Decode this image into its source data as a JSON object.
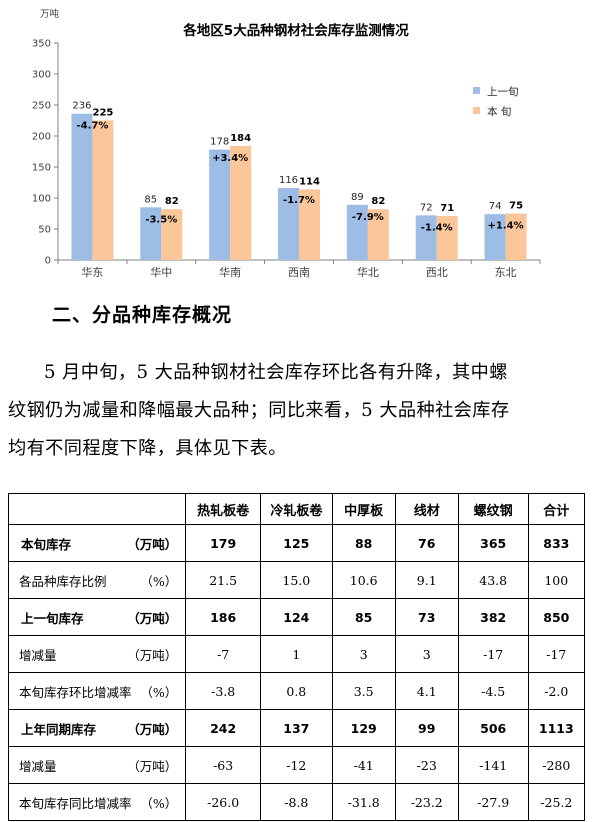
{
  "chart_data": {
    "type": "bar",
    "title": "各地区5大品种钢材社会库存监测情况",
    "unit_label": "万吨",
    "ylim": [
      0,
      350
    ],
    "yticks": [
      0,
      50,
      100,
      150,
      200,
      250,
      300,
      350
    ],
    "categories": [
      "华东",
      "华中",
      "华南",
      "西南",
      "华北",
      "西北",
      "东北"
    ],
    "series": [
      {
        "name": "上一旬",
        "values": [
          236,
          85,
          178,
          116,
          89,
          72,
          74
        ],
        "color": "#9dbde6"
      },
      {
        "name": "本 旬",
        "values": [
          225,
          82,
          184,
          114,
          82,
          71,
          75
        ],
        "color": "#fbc79a"
      }
    ],
    "changes": [
      "-4.7%",
      "-3.5%",
      "+3.4%",
      "-1.7%",
      "-7.9%",
      "-1.4%",
      "+1.4%"
    ],
    "legend_position": "right",
    "grid": false
  },
  "section": {
    "title": "二、分品种库存概况"
  },
  "paragraph": {
    "line1": "5 月中旬，5 大品种钢材社会库存环比各有升降，其中螺",
    "line2": "纹钢仍为减量和降幅最大品种；同比来看，5 大品种社会库存",
    "line3": "均有不同程度下降，具体见下表。"
  },
  "table": {
    "headers": [
      "",
      "热轧板卷",
      "冷轧板卷",
      "中厚板",
      "线材",
      "螺纹钢",
      "合计"
    ],
    "rows": [
      {
        "label": "本旬库存",
        "unit": "（万吨）",
        "values": [
          "179",
          "125",
          "88",
          "76",
          "365",
          "833"
        ],
        "bold": true
      },
      {
        "label": "各品种库存比例",
        "unit": "（%）",
        "values": [
          "21.5",
          "15.0",
          "10.6",
          "9.1",
          "43.8",
          "100"
        ],
        "bold": false
      },
      {
        "label": "上一旬库存",
        "unit": "（万吨）",
        "values": [
          "186",
          "124",
          "85",
          "73",
          "382",
          "850"
        ],
        "bold": true
      },
      {
        "label": "增减量",
        "unit": "（万吨）",
        "values": [
          "-7",
          "1",
          "3",
          "3",
          "-17",
          "-17"
        ],
        "bold": false
      },
      {
        "label": "本旬库存环比增减率",
        "unit": "（%）",
        "values": [
          "-3.8",
          "0.8",
          "3.5",
          "4.1",
          "-4.5",
          "-2.0"
        ],
        "bold": false
      },
      {
        "label": "上年同期库存",
        "unit": "（万吨）",
        "values": [
          "242",
          "137",
          "129",
          "99",
          "506",
          "1113"
        ],
        "bold": true
      },
      {
        "label": "增减量",
        "unit": "（万吨）",
        "values": [
          "-63",
          "-12",
          "-41",
          "-23",
          "-141",
          "-280"
        ],
        "bold": false
      },
      {
        "label": "本旬库存同比增减率",
        "unit": "（%）",
        "values": [
          "-26.0",
          "-8.8",
          "-31.8",
          "-23.2",
          "-27.9",
          "-25.2"
        ],
        "bold": false
      }
    ]
  }
}
